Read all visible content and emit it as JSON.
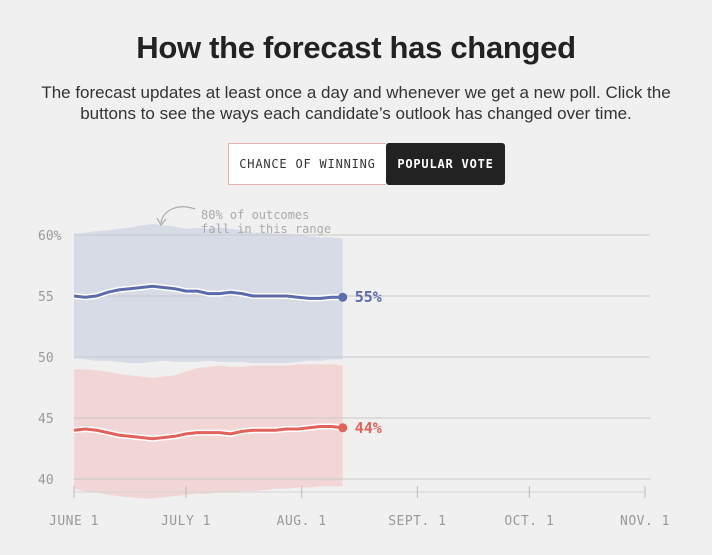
{
  "header": {
    "title": "How the forecast has changed",
    "subtitle": "The forecast updates at least once a day and whenever we get a new poll. Click the buttons to see the ways each candidate’s outlook has changed over time."
  },
  "toggle": {
    "options": [
      "CHANCE OF WINNING",
      "POPULAR VOTE"
    ],
    "selected": "POPULAR VOTE"
  },
  "chart_data": {
    "type": "area",
    "y_ticks": [
      "60%",
      "55",
      "50",
      "45",
      "40"
    ],
    "y_tick_values": [
      60,
      55,
      50,
      45,
      40
    ],
    "ylim": [
      39,
      61
    ],
    "x_tick_labels": [
      "JUNE 1",
      "JULY 1",
      "AUG. 1",
      "SEPT. 1",
      "OCT. 1",
      "NOV. 1"
    ],
    "x_tick_days": [
      0,
      30,
      61,
      92,
      122,
      153
    ],
    "xlim_days": [
      0,
      153
    ],
    "annotation": "80% of outcomes fall in this range",
    "grid": true,
    "series": [
      {
        "color": "#5b6bab",
        "band_color": "#d7dbe6",
        "end_label": "55%",
        "days": [
          0,
          3,
          6,
          9,
          12,
          15,
          18,
          21,
          24,
          27,
          30,
          33,
          36,
          39,
          42,
          45,
          48,
          51,
          54,
          57,
          60,
          63,
          66,
          69,
          72
        ],
        "values": [
          55.0,
          54.9,
          55.0,
          55.3,
          55.5,
          55.6,
          55.7,
          55.8,
          55.7,
          55.6,
          55.4,
          55.4,
          55.2,
          55.2,
          55.3,
          55.2,
          55.0,
          55.0,
          55.0,
          55.0,
          54.9,
          54.8,
          54.8,
          54.9,
          54.9
        ],
        "upper": [
          60.1,
          60.2,
          60.3,
          60.4,
          60.5,
          60.6,
          60.8,
          60.9,
          60.8,
          60.7,
          60.5,
          60.6,
          60.5,
          60.6,
          60.5,
          60.4,
          60.2,
          60.2,
          60.1,
          60.1,
          60.0,
          59.9,
          59.8,
          59.8,
          59.7
        ],
        "lower": [
          49.9,
          49.8,
          49.7,
          49.7,
          49.6,
          49.5,
          49.5,
          49.6,
          49.7,
          49.6,
          49.6,
          49.6,
          49.7,
          49.6,
          49.6,
          49.6,
          49.5,
          49.5,
          49.5,
          49.5,
          49.6,
          49.7,
          49.7,
          49.8,
          49.8
        ]
      },
      {
        "color": "#e0625a",
        "band_color": "#f2d6d5",
        "end_label": "44%",
        "days": [
          0,
          3,
          6,
          9,
          12,
          15,
          18,
          21,
          24,
          27,
          30,
          33,
          36,
          39,
          42,
          45,
          48,
          51,
          54,
          57,
          60,
          63,
          66,
          69,
          72
        ],
        "values": [
          44.0,
          44.1,
          44.0,
          43.8,
          43.6,
          43.5,
          43.4,
          43.3,
          43.4,
          43.5,
          43.7,
          43.8,
          43.8,
          43.8,
          43.7,
          43.9,
          44.0,
          44.0,
          44.0,
          44.1,
          44.1,
          44.2,
          44.3,
          44.3,
          44.2
        ],
        "upper": [
          49.0,
          49.0,
          48.9,
          48.8,
          48.6,
          48.5,
          48.4,
          48.3,
          48.4,
          48.5,
          48.8,
          49.1,
          49.2,
          49.3,
          49.2,
          49.2,
          49.3,
          49.3,
          49.3,
          49.3,
          49.4,
          49.4,
          49.4,
          49.4,
          49.3
        ],
        "lower": [
          39.2,
          39.0,
          38.9,
          38.7,
          38.6,
          38.5,
          38.4,
          38.4,
          38.5,
          38.6,
          38.7,
          38.8,
          38.8,
          38.9,
          38.9,
          39.0,
          39.0,
          39.1,
          39.2,
          39.2,
          39.3,
          39.3,
          39.4,
          39.4,
          39.4
        ]
      }
    ]
  }
}
